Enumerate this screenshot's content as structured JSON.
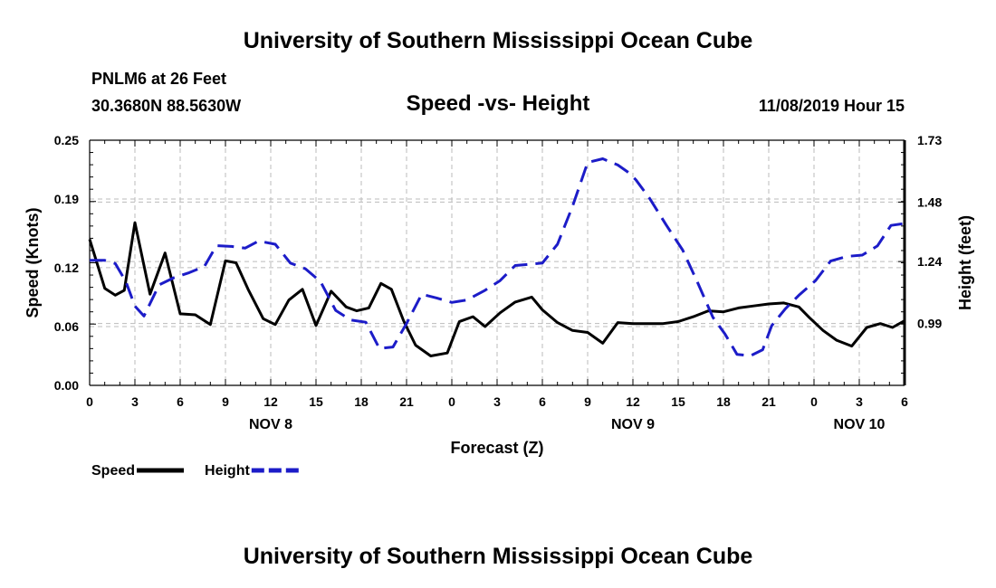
{
  "page_title": "University of Southern Mississippi Ocean Cube",
  "footer_title": "University of Southern Mississippi Ocean Cube",
  "station": "PNLM6 at 26 Feet",
  "coordinates": "30.3680N 88.5630W",
  "timestamp": "11/08/2019 Hour 15",
  "chart_data": {
    "type": "line",
    "title": "Speed -vs- Height",
    "xlabel": "Forecast (Z)",
    "ylabel_left": "Speed (Knots)",
    "ylabel_right": "Height (feet)",
    "x_range": [
      0,
      54
    ],
    "x_ticks": [
      0,
      3,
      6,
      9,
      12,
      15,
      18,
      21,
      24,
      27,
      30,
      33,
      36,
      39,
      42,
      45,
      48,
      51,
      54
    ],
    "x_tick_labels": [
      "0",
      "3",
      "6",
      "9",
      "12",
      "15",
      "18",
      "21",
      "0",
      "3",
      "6",
      "9",
      "12",
      "15",
      "18",
      "21",
      "0",
      "3",
      "6"
    ],
    "day_labels": [
      {
        "text": "NOV 8",
        "at": 12
      },
      {
        "text": "NOV 9",
        "at": 36
      },
      {
        "text": "NOV 10",
        "at": 51
      }
    ],
    "y_left": {
      "range": [
        0.0,
        0.25
      ],
      "ticks": [
        "0.00",
        "0.06",
        "0.12",
        "0.19",
        "0.25"
      ]
    },
    "y_right": {
      "range": [
        0.74,
        1.73
      ],
      "ticks": [
        "0.99",
        "1.24",
        "1.48",
        "1.73"
      ]
    },
    "grid": true,
    "colors": {
      "speed": "#000000",
      "height": "#1c1cc8",
      "grid": "#bbbbbb"
    },
    "legend": [
      {
        "label": "Speed",
        "series": "speed"
      },
      {
        "label": "Height",
        "series": "height"
      }
    ],
    "series": [
      {
        "name": "Speed",
        "axis": "left",
        "style": "solid",
        "x": [
          0,
          1,
          1.7,
          2.3,
          3,
          4,
          5,
          6,
          7,
          8,
          9,
          9.7,
          10.5,
          11.5,
          12.3,
          13.2,
          14.1,
          15,
          16,
          17,
          17.7,
          18.5,
          19.3,
          20,
          20.8,
          21.6,
          22.6,
          23.7,
          24.5,
          25.4,
          26.2,
          27.2,
          28.2,
          29.3,
          30,
          31,
          32,
          33,
          34,
          35,
          36,
          37,
          38,
          39,
          40,
          41,
          42,
          43,
          44,
          45,
          46,
          47,
          47.7,
          48.6,
          49.5,
          50.5,
          51.5,
          52.4,
          53.2,
          54
        ],
        "y": [
          0.149,
          0.099,
          0.092,
          0.097,
          0.166,
          0.093,
          0.135,
          0.073,
          0.072,
          0.062,
          0.127,
          0.125,
          0.098,
          0.068,
          0.062,
          0.087,
          0.098,
          0.061,
          0.096,
          0.08,
          0.076,
          0.079,
          0.104,
          0.098,
          0.066,
          0.041,
          0.03,
          0.033,
          0.065,
          0.07,
          0.06,
          0.074,
          0.085,
          0.09,
          0.077,
          0.064,
          0.056,
          0.054,
          0.043,
          0.064,
          0.063,
          0.063,
          0.063,
          0.065,
          0.07,
          0.076,
          0.075,
          0.079,
          0.081,
          0.083,
          0.084,
          0.08,
          0.069,
          0.056,
          0.046,
          0.04,
          0.059,
          0.063,
          0.059,
          0.066
        ]
      },
      {
        "name": "Height",
        "axis": "right",
        "style": "dashed",
        "x": [
          0,
          1,
          1.7,
          2.4,
          3,
          3.6,
          4.6,
          5.6,
          6.6,
          7.6,
          8.4,
          9.4,
          10.3,
          11.2,
          12.3,
          13.3,
          14.3,
          15.3,
          16.3,
          17.3,
          18.3,
          19.2,
          20.1,
          21,
          22,
          23,
          24,
          25,
          26.2,
          27.2,
          28.2,
          29.3,
          30,
          31,
          32,
          33,
          34,
          35,
          35.7,
          36.2,
          37.1,
          38.2,
          39.3,
          40.3,
          41.3,
          42.1,
          42.9,
          43.8,
          44.6,
          45.2,
          46.1,
          47,
          48.1,
          49.1,
          50.2,
          51.2,
          52.2,
          53.1,
          54
        ],
        "y": [
          1.245,
          1.245,
          1.232,
          1.159,
          1.06,
          1.02,
          1.146,
          1.175,
          1.195,
          1.22,
          1.304,
          1.301,
          1.294,
          1.323,
          1.31,
          1.234,
          1.211,
          1.159,
          1.043,
          1.004,
          0.995,
          0.889,
          0.895,
          0.99,
          1.108,
          1.093,
          1.075,
          1.085,
          1.124,
          1.163,
          1.224,
          1.23,
          1.234,
          1.31,
          1.463,
          1.64,
          1.655,
          1.63,
          1.6,
          1.57,
          1.496,
          1.388,
          1.286,
          1.153,
          1.015,
          0.947,
          0.865,
          0.86,
          0.884,
          0.981,
          1.049,
          1.104,
          1.163,
          1.242,
          1.261,
          1.266,
          1.303,
          1.386,
          1.394
        ]
      }
    ]
  }
}
